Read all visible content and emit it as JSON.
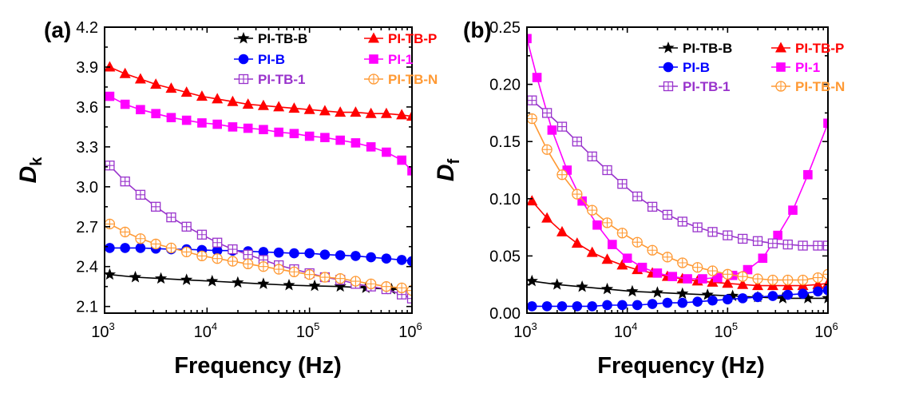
{
  "chart_data": [
    {
      "type": "line",
      "panel_label": "(a)",
      "xlabel": "Frequency (Hz)",
      "ylabel_main": "D",
      "ylabel_sub": "k",
      "xscale": "log",
      "xlim": [
        1000,
        1000000
      ],
      "ylim": [
        2.05,
        4.2
      ],
      "yticks": [
        "2.1",
        "2.4",
        "2.7",
        "3.0",
        "3.3",
        "3.6",
        "3.9",
        "4.2"
      ],
      "xticks": [
        {
          "base": "10",
          "exp": "3"
        },
        {
          "base": "10",
          "exp": "4"
        },
        {
          "base": "10",
          "exp": "5"
        },
        {
          "base": "10",
          "exp": "6"
        }
      ],
      "legend_position": "top-right",
      "series": [
        {
          "name": "PI-TB-B",
          "color": "#000000",
          "marker": "star",
          "values": [
            [
              3.05,
              2.34
            ],
            [
              3.3,
              2.32
            ],
            [
              3.55,
              2.31
            ],
            [
              3.8,
              2.3
            ],
            [
              4.05,
              2.29
            ],
            [
              4.3,
              2.28
            ],
            [
              4.55,
              2.27
            ],
            [
              4.8,
              2.26
            ],
            [
              5.05,
              2.255
            ],
            [
              5.3,
              2.25
            ],
            [
              5.55,
              2.24
            ],
            [
              5.8,
              2.23
            ],
            [
              6.0,
              2.22
            ]
          ]
        },
        {
          "name": "PI-TB-P",
          "color": "#ff0000",
          "marker": "triangle",
          "values": [
            [
              3.05,
              3.9
            ],
            [
              3.2,
              3.85
            ],
            [
              3.35,
              3.81
            ],
            [
              3.5,
              3.77
            ],
            [
              3.65,
              3.74
            ],
            [
              3.8,
              3.71
            ],
            [
              3.95,
              3.68
            ],
            [
              4.1,
              3.66
            ],
            [
              4.25,
              3.64
            ],
            [
              4.4,
              3.62
            ],
            [
              4.55,
              3.61
            ],
            [
              4.7,
              3.6
            ],
            [
              4.85,
              3.59
            ],
            [
              5.0,
              3.58
            ],
            [
              5.15,
              3.57
            ],
            [
              5.3,
              3.56
            ],
            [
              5.45,
              3.56
            ],
            [
              5.6,
              3.55
            ],
            [
              5.75,
              3.55
            ],
            [
              5.9,
              3.54
            ],
            [
              6.0,
              3.53
            ]
          ]
        },
        {
          "name": "PI-B",
          "color": "#0000ff",
          "marker": "circle",
          "values": [
            [
              3.05,
              2.54
            ],
            [
              3.2,
              2.54
            ],
            [
              3.35,
              2.54
            ],
            [
              3.5,
              2.535
            ],
            [
              3.65,
              2.53
            ],
            [
              3.8,
              2.53
            ],
            [
              3.95,
              2.525
            ],
            [
              4.1,
              2.52
            ],
            [
              4.25,
              2.52
            ],
            [
              4.4,
              2.515
            ],
            [
              4.55,
              2.51
            ],
            [
              4.7,
              2.505
            ],
            [
              4.85,
              2.5
            ],
            [
              5.0,
              2.5
            ],
            [
              5.15,
              2.49
            ],
            [
              5.3,
              2.485
            ],
            [
              5.45,
              2.48
            ],
            [
              5.6,
              2.47
            ],
            [
              5.75,
              2.46
            ],
            [
              5.9,
              2.45
            ],
            [
              6.0,
              2.44
            ]
          ]
        },
        {
          "name": "PI-1",
          "color": "#ff00ff",
          "marker": "square",
          "values": [
            [
              3.05,
              3.68
            ],
            [
              3.2,
              3.62
            ],
            [
              3.35,
              3.58
            ],
            [
              3.5,
              3.55
            ],
            [
              3.65,
              3.52
            ],
            [
              3.8,
              3.5
            ],
            [
              3.95,
              3.48
            ],
            [
              4.1,
              3.47
            ],
            [
              4.25,
              3.45
            ],
            [
              4.4,
              3.44
            ],
            [
              4.55,
              3.43
            ],
            [
              4.7,
              3.41
            ],
            [
              4.85,
              3.4
            ],
            [
              5.0,
              3.38
            ],
            [
              5.15,
              3.37
            ],
            [
              5.3,
              3.35
            ],
            [
              5.45,
              3.33
            ],
            [
              5.6,
              3.3
            ],
            [
              5.75,
              3.26
            ],
            [
              5.9,
              3.2
            ],
            [
              6.0,
              3.12
            ]
          ]
        },
        {
          "name": "PI-TB-1",
          "color": "#9933cc",
          "marker": "square-cross",
          "values": [
            [
              3.05,
              3.16
            ],
            [
              3.2,
              3.04
            ],
            [
              3.35,
              2.94
            ],
            [
              3.5,
              2.85
            ],
            [
              3.65,
              2.77
            ],
            [
              3.8,
              2.7
            ],
            [
              3.95,
              2.64
            ],
            [
              4.1,
              2.58
            ],
            [
              4.25,
              2.53
            ],
            [
              4.4,
              2.49
            ],
            [
              4.55,
              2.45
            ],
            [
              4.7,
              2.41
            ],
            [
              4.85,
              2.38
            ],
            [
              5.0,
              2.35
            ],
            [
              5.15,
              2.32
            ],
            [
              5.3,
              2.3
            ],
            [
              5.45,
              2.27
            ],
            [
              5.6,
              2.25
            ],
            [
              5.75,
              2.23
            ],
            [
              5.9,
              2.19
            ],
            [
              6.0,
              2.16
            ]
          ]
        },
        {
          "name": "PI-TB-N",
          "color": "#ff9933",
          "marker": "circle-cross",
          "values": [
            [
              3.05,
              2.72
            ],
            [
              3.2,
              2.66
            ],
            [
              3.35,
              2.61
            ],
            [
              3.5,
              2.57
            ],
            [
              3.65,
              2.54
            ],
            [
              3.8,
              2.51
            ],
            [
              3.95,
              2.48
            ],
            [
              4.1,
              2.46
            ],
            [
              4.25,
              2.44
            ],
            [
              4.4,
              2.42
            ],
            [
              4.55,
              2.4
            ],
            [
              4.7,
              2.38
            ],
            [
              4.85,
              2.36
            ],
            [
              5.0,
              2.34
            ],
            [
              5.15,
              2.32
            ],
            [
              5.3,
              2.31
            ],
            [
              5.45,
              2.29
            ],
            [
              5.6,
              2.27
            ],
            [
              5.75,
              2.25
            ],
            [
              5.9,
              2.24
            ],
            [
              6.0,
              2.22
            ]
          ]
        }
      ]
    },
    {
      "type": "line",
      "panel_label": "(b)",
      "xlabel": "Frequency (Hz)",
      "ylabel_main": "D",
      "ylabel_sub": "f",
      "xscale": "log",
      "xlim": [
        1000,
        1000000
      ],
      "ylim": [
        0.0,
        0.25
      ],
      "yticks": [
        "0.00",
        "0.05",
        "0.10",
        "0.15",
        "0.20",
        "0.25"
      ],
      "xticks": [
        {
          "base": "10",
          "exp": "3"
        },
        {
          "base": "10",
          "exp": "4"
        },
        {
          "base": "10",
          "exp": "5"
        },
        {
          "base": "10",
          "exp": "6"
        }
      ],
      "legend_position": "top-right",
      "series": [
        {
          "name": "PI-TB-B",
          "color": "#000000",
          "marker": "star",
          "values": [
            [
              3.05,
              0.028
            ],
            [
              3.3,
              0.025
            ],
            [
              3.55,
              0.023
            ],
            [
              3.8,
              0.021
            ],
            [
              4.05,
              0.019
            ],
            [
              4.3,
              0.018
            ],
            [
              4.55,
              0.017
            ],
            [
              4.8,
              0.016
            ],
            [
              5.05,
              0.015
            ],
            [
              5.3,
              0.014
            ],
            [
              5.55,
              0.013
            ],
            [
              5.8,
              0.013
            ],
            [
              6.0,
              0.013
            ]
          ]
        },
        {
          "name": "PI-TB-P",
          "color": "#ff0000",
          "marker": "triangle",
          "values": [
            [
              3.05,
              0.098
            ],
            [
              3.2,
              0.083
            ],
            [
              3.35,
              0.071
            ],
            [
              3.5,
              0.061
            ],
            [
              3.65,
              0.053
            ],
            [
              3.8,
              0.047
            ],
            [
              3.95,
              0.042
            ],
            [
              4.1,
              0.038
            ],
            [
              4.25,
              0.035
            ],
            [
              4.4,
              0.032
            ],
            [
              4.55,
              0.03
            ],
            [
              4.7,
              0.028
            ],
            [
              4.85,
              0.027
            ],
            [
              5.0,
              0.026
            ],
            [
              5.15,
              0.025
            ],
            [
              5.3,
              0.024
            ],
            [
              5.45,
              0.024
            ],
            [
              5.6,
              0.024
            ],
            [
              5.75,
              0.024
            ],
            [
              5.9,
              0.025
            ],
            [
              6.0,
              0.026
            ]
          ]
        },
        {
          "name": "PI-B",
          "color": "#0000ff",
          "marker": "circle",
          "values": [
            [
              3.05,
              0.006
            ],
            [
              3.2,
              0.006
            ],
            [
              3.35,
              0.006
            ],
            [
              3.5,
              0.006
            ],
            [
              3.65,
              0.006
            ],
            [
              3.8,
              0.007
            ],
            [
              3.95,
              0.007
            ],
            [
              4.1,
              0.007
            ],
            [
              4.25,
              0.008
            ],
            [
              4.4,
              0.009
            ],
            [
              4.55,
              0.009
            ],
            [
              4.7,
              0.01
            ],
            [
              4.85,
              0.011
            ],
            [
              5.0,
              0.012
            ],
            [
              5.15,
              0.013
            ],
            [
              5.3,
              0.014
            ],
            [
              5.45,
              0.015
            ],
            [
              5.6,
              0.016
            ],
            [
              5.75,
              0.017
            ],
            [
              5.9,
              0.019
            ],
            [
              6.0,
              0.02
            ]
          ]
        },
        {
          "name": "PI-1",
          "color": "#ff00ff",
          "marker": "square",
          "values": [
            [
              3.0,
              0.24
            ],
            [
              3.1,
              0.206
            ],
            [
              3.25,
              0.16
            ],
            [
              3.4,
              0.125
            ],
            [
              3.55,
              0.098
            ],
            [
              3.7,
              0.077
            ],
            [
              3.85,
              0.06
            ],
            [
              4.0,
              0.048
            ],
            [
              4.15,
              0.04
            ],
            [
              4.3,
              0.035
            ],
            [
              4.45,
              0.032
            ],
            [
              4.6,
              0.03
            ],
            [
              4.75,
              0.03
            ],
            [
              4.9,
              0.031
            ],
            [
              5.05,
              0.033
            ],
            [
              5.2,
              0.038
            ],
            [
              5.35,
              0.048
            ],
            [
              5.5,
              0.068
            ],
            [
              5.65,
              0.09
            ],
            [
              5.8,
              0.121
            ],
            [
              6.0,
              0.166
            ]
          ]
        },
        {
          "name": "PI-TB-1",
          "color": "#9933cc",
          "marker": "square-cross",
          "values": [
            [
              3.05,
              0.186
            ],
            [
              3.2,
              0.175
            ],
            [
              3.35,
              0.163
            ],
            [
              3.5,
              0.15
            ],
            [
              3.65,
              0.137
            ],
            [
              3.8,
              0.125
            ],
            [
              3.95,
              0.113
            ],
            [
              4.1,
              0.102
            ],
            [
              4.25,
              0.093
            ],
            [
              4.4,
              0.086
            ],
            [
              4.55,
              0.08
            ],
            [
              4.7,
              0.075
            ],
            [
              4.85,
              0.071
            ],
            [
              5.0,
              0.068
            ],
            [
              5.15,
              0.065
            ],
            [
              5.3,
              0.063
            ],
            [
              5.45,
              0.061
            ],
            [
              5.6,
              0.06
            ],
            [
              5.75,
              0.059
            ],
            [
              5.9,
              0.059
            ],
            [
              6.0,
              0.059
            ]
          ]
        },
        {
          "name": "PI-TB-N",
          "color": "#ff9933",
          "marker": "circle-cross",
          "values": [
            [
              3.05,
              0.17
            ],
            [
              3.2,
              0.143
            ],
            [
              3.35,
              0.121
            ],
            [
              3.5,
              0.104
            ],
            [
              3.65,
              0.09
            ],
            [
              3.8,
              0.079
            ],
            [
              3.95,
              0.07
            ],
            [
              4.1,
              0.062
            ],
            [
              4.25,
              0.055
            ],
            [
              4.4,
              0.049
            ],
            [
              4.55,
              0.044
            ],
            [
              4.7,
              0.04
            ],
            [
              4.85,
              0.037
            ],
            [
              5.0,
              0.034
            ],
            [
              5.15,
              0.032
            ],
            [
              5.3,
              0.03
            ],
            [
              5.45,
              0.029
            ],
            [
              5.6,
              0.029
            ],
            [
              5.75,
              0.029
            ],
            [
              5.9,
              0.031
            ],
            [
              6.0,
              0.034
            ]
          ]
        }
      ]
    }
  ]
}
